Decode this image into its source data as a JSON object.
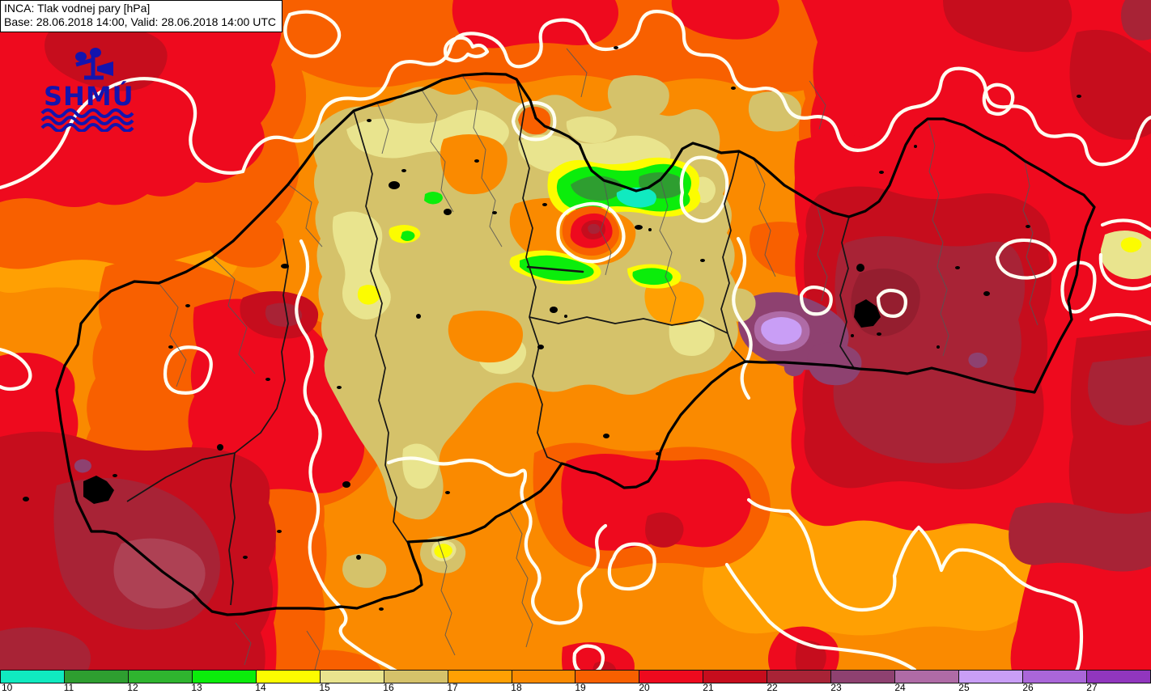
{
  "title_box": {
    "line1": "INCA: Tlak vodnej pary [hPa]",
    "line2": "Base: 28.06.2018 14:00, Valid: 28.06.2018 14:00 UTC"
  },
  "logo": {
    "text": "SHMÚ"
  },
  "colorbar": {
    "levels": [
      "10",
      "11",
      "12",
      "13",
      "14",
      "15",
      "16",
      "17",
      "18",
      "19",
      "20",
      "21",
      "22",
      "23",
      "24",
      "25",
      "26",
      "27"
    ],
    "colors": [
      "#10EAC0",
      "#2E9E30",
      "#2FB42F",
      "#0BED0B",
      "#FCFC00",
      "#E9E48E",
      "#D5C26A",
      "#FFA003",
      "#FA8A00",
      "#F86000",
      "#EE0A1E",
      "#C60D1D",
      "#A82336",
      "#8E4170",
      "#AF6BA6",
      "#C99EF6",
      "#AA66D9",
      "#9136BE"
    ]
  },
  "map": {
    "accent_colors": {
      "rose": "#AE4154",
      "maroon_dark": "#951E2F",
      "contour": "#FFFFF2",
      "national_border": "#000000",
      "kraj_border": "#151515",
      "okres_border": "#555555",
      "city": "#000000",
      "logo_blue": "#1414AE"
    }
  }
}
